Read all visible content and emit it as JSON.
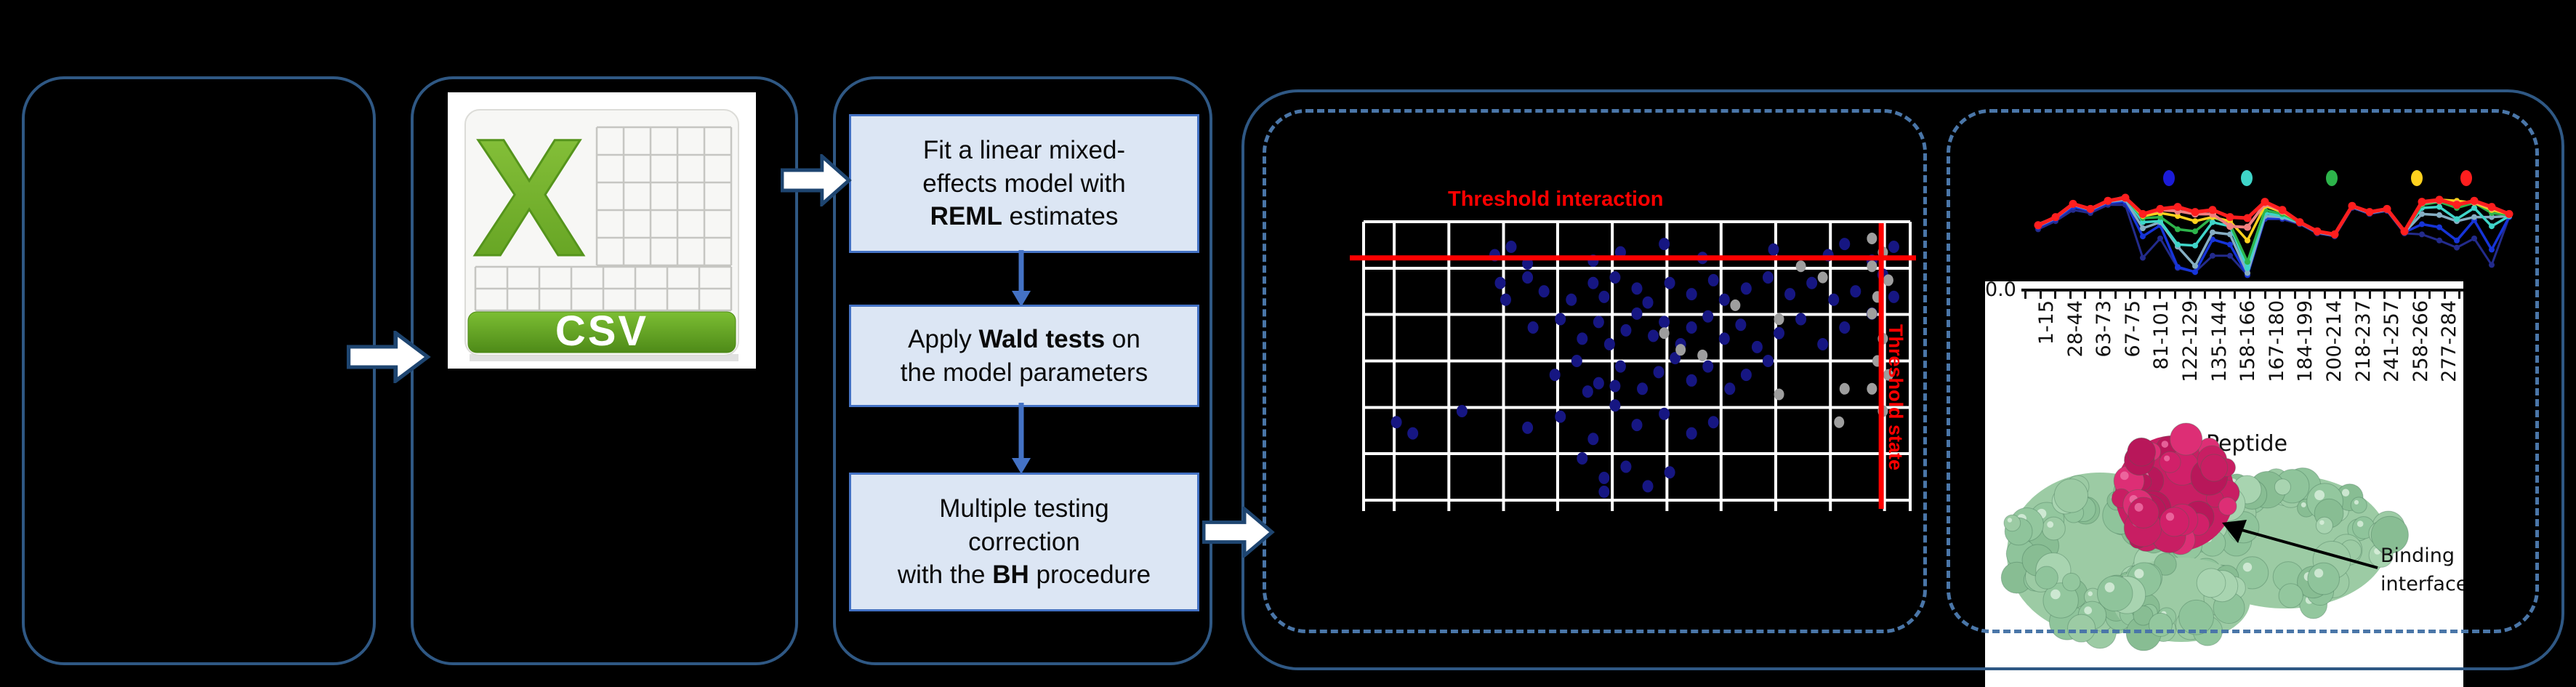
{
  "colors": {
    "background": "#000000",
    "panel_border": "#2F5884",
    "dashed_border": "#4A76A8",
    "arrow_outline": "#1E4570",
    "box_fill": "#DCE6F4",
    "box_border": "#4472C4",
    "flow_arrow": "#4472C4",
    "accent_red": "#FF0000",
    "scatter_point_blue": "#161682",
    "scatter_point_gray": "#9E9E9E",
    "gridline": "#FFFFFF",
    "csv_green": "#76B82F",
    "csv_green_dark": "#55941C",
    "protein_green": "#9CCBA4",
    "protein_pink": "#D12069"
  },
  "csv": {
    "letter": "X",
    "banner_label": "CSV"
  },
  "flow": {
    "boxes": [
      {
        "lines": [
          [
            {
              "t": "Fit a linear mixed-"
            }
          ],
          [
            {
              "t": "effects model with"
            }
          ],
          [
            {
              "t": "REML",
              "b": true
            },
            {
              "t": " estimates"
            }
          ]
        ]
      },
      {
        "lines": [
          [
            {
              "t": "Apply "
            },
            {
              "t": "Wald tests",
              "b": true
            },
            {
              "t": " on"
            }
          ],
          [
            {
              "t": "the model parameters"
            }
          ]
        ]
      },
      {
        "lines": [
          [
            {
              "t": "Multiple testing"
            }
          ],
          [
            {
              "t": "correction"
            }
          ],
          [
            {
              "t": "with the "
            },
            {
              "t": "BH",
              "b": true
            },
            {
              "t": " procedure"
            }
          ]
        ]
      }
    ]
  },
  "scatter": {
    "title": "Threshold interaction",
    "side_label": "Threshold state",
    "grid_v": [
      0,
      5.6,
      15.6,
      25.6,
      35.5,
      45.5,
      55.5,
      65.4,
      75.4,
      85.4,
      95.3,
      100
    ],
    "grid_h": [
      0,
      16.7,
      33.3,
      50,
      66.7,
      83.3,
      100
    ],
    "red_hline_pct": 13,
    "red_vline_pct": 94.7,
    "blue_points": [
      [
        24,
        12
      ],
      [
        27,
        9
      ],
      [
        42,
        14
      ],
      [
        47,
        11
      ],
      [
        55,
        8
      ],
      [
        62,
        13
      ],
      [
        75,
        10
      ],
      [
        85,
        12
      ],
      [
        88,
        8
      ],
      [
        93,
        14
      ],
      [
        97,
        9
      ],
      [
        30,
        15
      ],
      [
        25,
        22
      ],
      [
        26,
        28
      ],
      [
        30,
        20
      ],
      [
        33,
        25
      ],
      [
        38,
        28
      ],
      [
        42,
        22
      ],
      [
        44,
        27
      ],
      [
        46,
        20
      ],
      [
        50,
        24
      ],
      [
        52,
        29
      ],
      [
        56,
        22
      ],
      [
        60,
        26
      ],
      [
        64,
        21
      ],
      [
        66,
        28
      ],
      [
        70,
        24
      ],
      [
        74,
        20
      ],
      [
        78,
        26
      ],
      [
        82,
        22
      ],
      [
        86,
        28
      ],
      [
        90,
        25
      ],
      [
        95,
        19
      ],
      [
        97,
        27
      ],
      [
        31,
        38
      ],
      [
        36,
        35
      ],
      [
        40,
        42
      ],
      [
        43,
        36
      ],
      [
        45,
        44
      ],
      [
        48,
        39
      ],
      [
        50,
        33
      ],
      [
        53,
        41
      ],
      [
        55,
        36
      ],
      [
        58,
        44
      ],
      [
        60,
        38
      ],
      [
        63,
        34
      ],
      [
        66,
        42
      ],
      [
        69,
        37
      ],
      [
        72,
        45
      ],
      [
        76,
        40
      ],
      [
        80,
        35
      ],
      [
        84,
        44
      ],
      [
        88,
        38
      ],
      [
        93,
        33
      ],
      [
        35,
        55
      ],
      [
        39,
        50
      ],
      [
        43,
        58
      ],
      [
        47,
        52
      ],
      [
        51,
        60
      ],
      [
        54,
        54
      ],
      [
        57,
        49
      ],
      [
        60,
        57
      ],
      [
        63,
        52
      ],
      [
        67,
        60
      ],
      [
        70,
        55
      ],
      [
        74,
        50
      ],
      [
        41,
        61
      ],
      [
        46,
        59
      ],
      [
        6,
        72
      ],
      [
        9,
        76
      ],
      [
        18,
        68
      ],
      [
        30,
        74
      ],
      [
        36,
        70
      ],
      [
        42,
        78
      ],
      [
        46,
        66
      ],
      [
        50,
        73
      ],
      [
        55,
        69
      ],
      [
        60,
        76
      ],
      [
        64,
        72
      ],
      [
        40,
        85
      ],
      [
        44,
        92
      ],
      [
        48,
        88
      ],
      [
        52,
        95
      ],
      [
        56,
        90
      ],
      [
        44,
        97
      ]
    ],
    "gray_points": [
      [
        55,
        40
      ],
      [
        58,
        46
      ],
      [
        62,
        48
      ],
      [
        68,
        30
      ],
      [
        80,
        16
      ],
      [
        84,
        20
      ],
      [
        76,
        35
      ],
      [
        88,
        60
      ],
      [
        93,
        6
      ],
      [
        95,
        11
      ],
      [
        93,
        16
      ],
      [
        96,
        21
      ],
      [
        94,
        27
      ],
      [
        93,
        33
      ],
      [
        95,
        42
      ],
      [
        94,
        50
      ],
      [
        96,
        55
      ],
      [
        93,
        60
      ],
      [
        95,
        68
      ],
      [
        87,
        72
      ],
      [
        76,
        62
      ]
    ]
  },
  "profile": {
    "legend_colors": [
      "#1B1BD8",
      "#3FD5C9",
      "#2DB44B",
      "#FFD21E",
      "#FF1E1E"
    ],
    "zero_label": "0.0",
    "axis_title": "Peptide",
    "peptide_labels": [
      "1-15",
      "28-44",
      "63-73",
      "67-75",
      "81-101",
      "122-129",
      "135-144",
      "158-166",
      "167-180",
      "184-199",
      "200-214",
      "218-237",
      "241-257",
      "258-266",
      "277-284"
    ],
    "annotation": {
      "line1": "Binding",
      "line2": "interface"
    },
    "series": [
      {
        "name": "navy",
        "color": "#232B8C",
        "width": 3,
        "values": [
          41,
          33,
          22,
          25,
          17,
          17,
          69,
          50,
          79,
          83,
          67,
          67,
          86,
          31,
          31,
          36,
          45,
          48,
          20,
          26,
          23,
          45,
          46,
          52,
          59,
          50,
          76,
          29
        ]
      },
      {
        "name": "blue",
        "color": "#1634D8",
        "width": 3.5,
        "values": [
          39,
          31,
          19,
          23,
          15,
          14,
          48,
          37,
          78,
          83,
          51,
          56,
          86,
          30,
          30,
          35,
          44,
          47,
          19,
          25,
          22,
          44,
          36,
          39,
          52,
          32,
          61,
          29
        ]
      },
      {
        "name": "steel",
        "color": "#86AEC3",
        "width": 3.5,
        "values": [
          38,
          30,
          17,
          22,
          14,
          12,
          40,
          34,
          58,
          77,
          44,
          46,
          84,
          28,
          29,
          35,
          44,
          47,
          19,
          25,
          22,
          44,
          26,
          27,
          33,
          29,
          29,
          28
        ]
      },
      {
        "name": "turquoise",
        "color": "#3FD5C9",
        "width": 3.5,
        "values": [
          36,
          29,
          16,
          21,
          13,
          9,
          34,
          33,
          56,
          57,
          34,
          38,
          79,
          25,
          28,
          34,
          43,
          46,
          18,
          24,
          21,
          43,
          20,
          19,
          31,
          20,
          38,
          28
        ]
      },
      {
        "name": "green",
        "color": "#2DB44B",
        "width": 3.5,
        "values": [
          37,
          29,
          16,
          21,
          13,
          10,
          30,
          29,
          41,
          43,
          29,
          36,
          73,
          22,
          26,
          34,
          43,
          46,
          18,
          24,
          21,
          43,
          17,
          14,
          20,
          15,
          25,
          27
        ]
      },
      {
        "name": "yellow",
        "color": "#FFD21E",
        "width": 3.5,
        "values": [
          37,
          29,
          16,
          21,
          13,
          10,
          28,
          25,
          28,
          33,
          29,
          33,
          52,
          18,
          24,
          34,
          43,
          46,
          18,
          24,
          21,
          43,
          14,
          12,
          13,
          15,
          22,
          26
        ]
      },
      {
        "name": "salmon",
        "color": "#F08080",
        "width": 4,
        "values": [
          37,
          29,
          16,
          21,
          13,
          10,
          26,
          22,
          23,
          26,
          26,
          38,
          39,
          16,
          23,
          34,
          43,
          46,
          18,
          24,
          21,
          43,
          15,
          13,
          16,
          14,
          20,
          26
        ]
      },
      {
        "name": "red",
        "color": "#FF1E1E",
        "width": 5,
        "values": [
          37,
          29,
          16,
          21,
          13,
          10,
          26,
          21,
          19,
          24,
          22,
          29,
          30,
          14,
          22,
          34,
          43,
          46,
          18,
          24,
          21,
          43,
          14,
          12,
          17,
          13,
          19,
          26
        ]
      }
    ]
  }
}
